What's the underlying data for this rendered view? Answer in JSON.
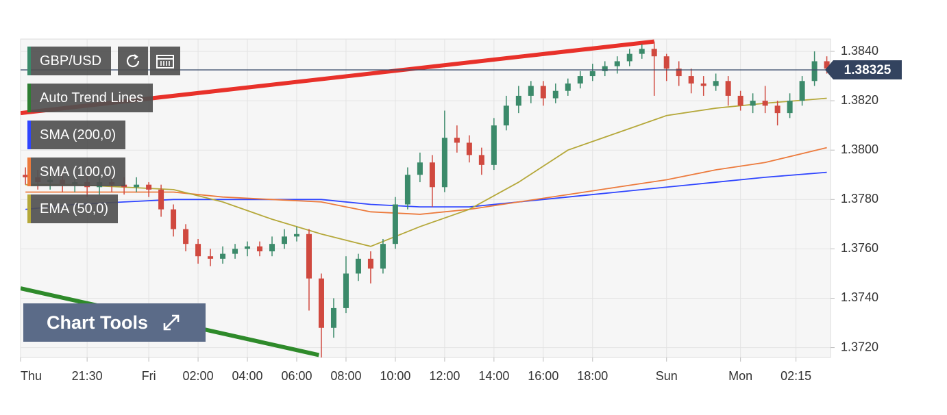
{
  "chart_data": {
    "type": "candlestick",
    "symbol": "GBP/USD",
    "up_color": "#3b8a6a",
    "down_color": "#d0493f",
    "x": [
      -5,
      -4.5,
      -4,
      -3.5,
      -3,
      -2.5,
      -2,
      -1.5,
      -1,
      -0.5,
      0,
      0.5,
      1,
      1.5,
      2,
      2.5,
      3,
      3.5,
      4,
      4.5,
      5,
      5.5,
      6,
      6.5,
      7,
      7.5,
      8,
      8.5,
      9,
      9.5,
      10,
      10.5,
      11,
      11.5,
      12,
      12.5,
      13,
      13.5,
      14,
      14.5,
      15,
      15.5,
      16,
      16.5,
      17,
      17.5,
      18,
      18.5,
      19,
      19.5,
      20,
      20.5,
      21,
      21.5,
      22,
      22.5,
      23,
      23.5,
      24,
      24.5,
      25,
      25.5,
      26,
      26.5,
      27,
      27.5
    ],
    "open": [
      1.379,
      1.3789,
      1.3787,
      1.3788,
      1.3786,
      1.3787,
      1.3785,
      1.3787,
      1.3786,
      1.3785,
      1.3786,
      1.3784,
      1.3776,
      1.3768,
      1.3762,
      1.3757,
      1.3756,
      1.3758,
      1.376,
      1.3761,
      1.3759,
      1.3762,
      1.3765,
      1.3766,
      1.3748,
      1.3728,
      1.3736,
      1.375,
      1.3756,
      1.3752,
      1.3762,
      1.3778,
      1.379,
      1.3795,
      1.3785,
      1.3805,
      1.3803,
      1.3798,
      1.3794,
      1.381,
      1.3818,
      1.3822,
      1.3826,
      1.3821,
      1.3824,
      1.3827,
      1.383,
      1.3832,
      1.3834,
      1.3836,
      1.3839,
      1.3841,
      1.3838,
      1.3833,
      1.383,
      1.3827,
      1.3826,
      1.3828,
      1.3822,
      1.3818,
      1.382,
      1.3818,
      1.3815,
      1.382,
      1.3828,
      1.3836
    ],
    "high": [
      1.3793,
      1.3792,
      1.3791,
      1.3791,
      1.379,
      1.379,
      1.379,
      1.3789,
      1.3789,
      1.3789,
      1.3787,
      1.3786,
      1.3778,
      1.377,
      1.3764,
      1.376,
      1.3761,
      1.3762,
      1.3763,
      1.3763,
      1.3765,
      1.3768,
      1.3769,
      1.3768,
      1.375,
      1.374,
      1.3757,
      1.3758,
      1.3759,
      1.3764,
      1.3781,
      1.3793,
      1.3799,
      1.3798,
      1.3816,
      1.381,
      1.3806,
      1.3801,
      1.3813,
      1.3822,
      1.3826,
      1.3828,
      1.3828,
      1.3827,
      1.3829,
      1.3832,
      1.3835,
      1.3836,
      1.3838,
      1.3841,
      1.3843,
      1.3844,
      1.3839,
      1.3836,
      1.3833,
      1.383,
      1.3831,
      1.383,
      1.3824,
      1.3823,
      1.3826,
      1.382,
      1.3823,
      1.383,
      1.384,
      1.3838
    ],
    "low": [
      1.3786,
      1.3784,
      1.3784,
      1.3783,
      1.3783,
      1.3781,
      1.3782,
      1.3783,
      1.3782,
      1.3783,
      1.3781,
      1.3773,
      1.3765,
      1.3759,
      1.3754,
      1.3753,
      1.3754,
      1.3756,
      1.3757,
      1.3757,
      1.3757,
      1.376,
      1.3763,
      1.3735,
      1.3716,
      1.3724,
      1.3734,
      1.3747,
      1.3746,
      1.375,
      1.376,
      1.3776,
      1.3787,
      1.3777,
      1.3783,
      1.3799,
      1.3795,
      1.379,
      1.3792,
      1.3808,
      1.3815,
      1.3819,
      1.3818,
      1.3819,
      1.3822,
      1.3825,
      1.3828,
      1.383,
      1.3831,
      1.3834,
      1.3837,
      1.3822,
      1.3828,
      1.3826,
      1.3823,
      1.3822,
      1.3824,
      1.3818,
      1.3816,
      1.3815,
      1.3815,
      1.381,
      1.3813,
      1.3818,
      1.3826,
      1.3831
    ],
    "close": [
      1.3789,
      1.3787,
      1.3788,
      1.3786,
      1.3787,
      1.3785,
      1.3787,
      1.3786,
      1.3785,
      1.3786,
      1.3784,
      1.3776,
      1.3768,
      1.3762,
      1.3757,
      1.3756,
      1.3758,
      1.376,
      1.3761,
      1.3759,
      1.3762,
      1.3765,
      1.3766,
      1.3748,
      1.3728,
      1.3736,
      1.375,
      1.3756,
      1.3752,
      1.3762,
      1.3778,
      1.379,
      1.3795,
      1.3785,
      1.3805,
      1.3803,
      1.3798,
      1.3794,
      1.381,
      1.3818,
      1.3822,
      1.3826,
      1.3821,
      1.3824,
      1.3827,
      1.383,
      1.3832,
      1.3834,
      1.3836,
      1.3839,
      1.3841,
      1.3838,
      1.3833,
      1.383,
      1.3827,
      1.3826,
      1.3828,
      1.3822,
      1.3818,
      1.382,
      1.3818,
      1.3815,
      1.382,
      1.3828,
      1.3836,
      1.3833
    ],
    "series": [
      {
        "name": "SMA (200,0)",
        "color": "#2f45ff",
        "x": [
          -5,
          -3,
          -1,
          1,
          3,
          5,
          7,
          9,
          11,
          13,
          15,
          17,
          19,
          21,
          23,
          25,
          27.5
        ],
        "values": [
          1.3776,
          1.3778,
          1.3779,
          1.378,
          1.378,
          1.378,
          1.378,
          1.3778,
          1.3777,
          1.3777,
          1.3779,
          1.3781,
          1.3783,
          1.3785,
          1.3787,
          1.3789,
          1.3791
        ]
      },
      {
        "name": "SMA (100,0)",
        "color": "#ec7a3c",
        "x": [
          -5,
          -3,
          -1,
          1,
          3,
          5,
          7,
          9,
          11,
          13,
          15,
          17,
          19,
          21,
          23,
          25,
          27.5
        ],
        "values": [
          1.3783,
          1.3783,
          1.3783,
          1.3783,
          1.3781,
          1.378,
          1.3779,
          1.3775,
          1.3774,
          1.3776,
          1.3779,
          1.3782,
          1.3785,
          1.3788,
          1.3792,
          1.3795,
          1.3801
        ]
      },
      {
        "name": "EMA (50,0)",
        "color": "#b5a83a",
        "x": [
          -5,
          -3,
          -1,
          1,
          3,
          5,
          7,
          9,
          11,
          13,
          15,
          17,
          19,
          21,
          23,
          25,
          27.5
        ],
        "values": [
          1.3786,
          1.3786,
          1.3785,
          1.3784,
          1.3779,
          1.3772,
          1.3766,
          1.3761,
          1.3769,
          1.3776,
          1.3787,
          1.38,
          1.3807,
          1.3814,
          1.3817,
          1.3819,
          1.3821
        ]
      }
    ],
    "trend_lines": {
      "name": "Auto Trend Lines",
      "legend_color": "#2e7d32",
      "lines": [
        {
          "color": "#e8312a",
          "x": [
            -5.2,
            20.5
          ],
          "values": [
            1.3815,
            1.3844
          ]
        },
        {
          "color": "#2e8a2a",
          "x": [
            -5.2,
            6.9
          ],
          "values": [
            1.3744,
            1.3717
          ]
        }
      ]
    },
    "last_price": 1.38325,
    "xlim": [
      -5.2,
      27.65
    ],
    "ylim": [
      1.3716,
      1.3845
    ],
    "xticks": [
      {
        "value": -5.2,
        "label": "Thu"
      },
      {
        "value": -2.5,
        "label": "21:30"
      },
      {
        "value": 0,
        "label": "Fri"
      },
      {
        "value": 2,
        "label": "02:00"
      },
      {
        "value": 4,
        "label": "04:00"
      },
      {
        "value": 6,
        "label": "06:00"
      },
      {
        "value": 8,
        "label": "08:00"
      },
      {
        "value": 10,
        "label": "10:00"
      },
      {
        "value": 12,
        "label": "12:00"
      },
      {
        "value": 14,
        "label": "14:00"
      },
      {
        "value": 16,
        "label": "16:00"
      },
      {
        "value": 18,
        "label": "18:00"
      },
      {
        "value": 21,
        "label": "Sun"
      },
      {
        "value": 24,
        "label": "Mon"
      },
      {
        "value": 26.25,
        "label": "02:15"
      }
    ],
    "yticks": [
      {
        "value": 1.372,
        "label": "1.3720"
      },
      {
        "value": 1.374,
        "label": "1.3740"
      },
      {
        "value": 1.376,
        "label": "1.3760"
      },
      {
        "value": 1.378,
        "label": "1.3780"
      },
      {
        "value": 1.38,
        "label": "1.3800"
      },
      {
        "value": 1.382,
        "label": "1.3820"
      },
      {
        "value": 1.384,
        "label": "1.3840"
      }
    ],
    "grid": true
  },
  "ui": {
    "chart_tools": "Chart Tools"
  }
}
